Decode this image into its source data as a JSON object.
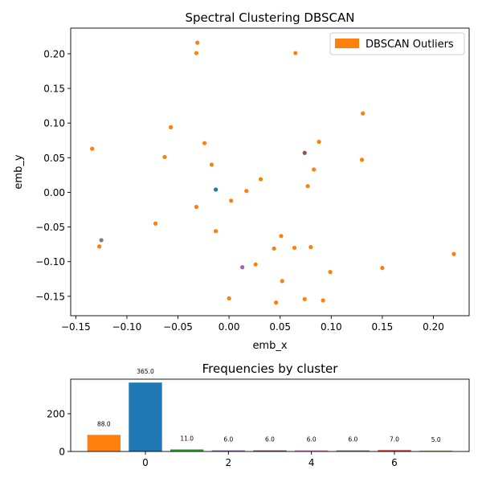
{
  "chart_data": [
    {
      "type": "scatter",
      "title": "Spectral Clustering DBSCAN",
      "xlabel": "emb_x",
      "ylabel": "emb_y",
      "xlim": [
        -0.155,
        0.235
      ],
      "ylim": [
        -0.178,
        0.237
      ],
      "xticks": [
        -0.15,
        -0.1,
        -0.05,
        0.0,
        0.05,
        0.1,
        0.15,
        0.2
      ],
      "xtick_labels": [
        "−0.15",
        "−0.10",
        "−0.05",
        "0.00",
        "0.05",
        "0.10",
        "0.15",
        "0.20"
      ],
      "yticks": [
        -0.15,
        -0.1,
        -0.05,
        0.0,
        0.05,
        0.1,
        0.15,
        0.2
      ],
      "ytick_labels": [
        "−0.15",
        "−0.10",
        "−0.05",
        "0.00",
        "0.05",
        "0.10",
        "0.15",
        "0.20"
      ],
      "grid": false,
      "legend": {
        "position": "top-right",
        "entries": [
          {
            "label": "DBSCAN Outliers",
            "color": "#ff7f0e"
          }
        ]
      },
      "series": [
        {
          "name": "DBSCAN Outliers",
          "color": "#ff7f0e",
          "points": [
            [
              -0.031,
              0.216
            ],
            [
              -0.032,
              0.201
            ],
            [
              0.065,
              0.201
            ],
            [
              0.131,
              0.114
            ],
            [
              -0.057,
              0.094
            ],
            [
              -0.024,
              0.071
            ],
            [
              0.088,
              0.073
            ],
            [
              -0.134,
              0.063
            ],
            [
              -0.063,
              0.051
            ],
            [
              0.13,
              0.047
            ],
            [
              -0.017,
              0.04
            ],
            [
              0.083,
              0.033
            ],
            [
              0.031,
              0.019
            ],
            [
              0.077,
              0.009
            ],
            [
              0.017,
              0.002
            ],
            [
              0.002,
              -0.012
            ],
            [
              -0.032,
              -0.021
            ],
            [
              -0.072,
              -0.045
            ],
            [
              -0.013,
              -0.056
            ],
            [
              0.051,
              -0.063
            ],
            [
              0.044,
              -0.081
            ],
            [
              0.064,
              -0.08
            ],
            [
              0.08,
              -0.079
            ],
            [
              -0.127,
              -0.078
            ],
            [
              0.026,
              -0.104
            ],
            [
              0.15,
              -0.109
            ],
            [
              0.099,
              -0.115
            ],
            [
              0.052,
              -0.128
            ],
            [
              0.22,
              -0.089
            ],
            [
              0.0,
              -0.153
            ],
            [
              0.074,
              -0.154
            ],
            [
              0.092,
              -0.156
            ],
            [
              0.046,
              -0.159
            ]
          ]
        },
        {
          "color": "#1f77b4",
          "points": [
            [
              -0.013,
              0.004
            ]
          ]
        },
        {
          "color": "#8c564b",
          "points": [
            [
              0.074,
              0.057
            ]
          ]
        },
        {
          "color": "#7f7f7f",
          "points": [
            [
              -0.125,
              -0.069
            ]
          ]
        },
        {
          "color": "#9467bd",
          "points": [
            [
              0.013,
              -0.108
            ]
          ]
        }
      ]
    },
    {
      "type": "bar",
      "title": "Frequencies by cluster",
      "x": [
        -1,
        0,
        1,
        2,
        3,
        4,
        5,
        6,
        7
      ],
      "values": [
        88,
        365,
        11,
        6,
        6,
        6,
        6,
        7,
        5
      ],
      "value_labels": [
        "88.0",
        "365.0",
        "11.0",
        "6.0",
        "6.0",
        "6.0",
        "6.0",
        "7.0",
        "5.0"
      ],
      "colors": [
        "#ff7f0e",
        "#1f77b4",
        "#2ca02c",
        "#9467bd",
        "#8c564b",
        "#e377c2",
        "#7f7f7f",
        "#d62728",
        "#bcbd22"
      ],
      "xlim": [
        -1.8,
        7.8
      ],
      "ylim": [
        0,
        383
      ],
      "xticks": [
        0,
        2,
        4,
        6
      ],
      "xtick_labels": [
        "0",
        "2",
        "4",
        "6"
      ],
      "yticks": [
        0,
        200
      ],
      "ytick_labels": [
        "0",
        "200"
      ],
      "grid": false
    }
  ]
}
